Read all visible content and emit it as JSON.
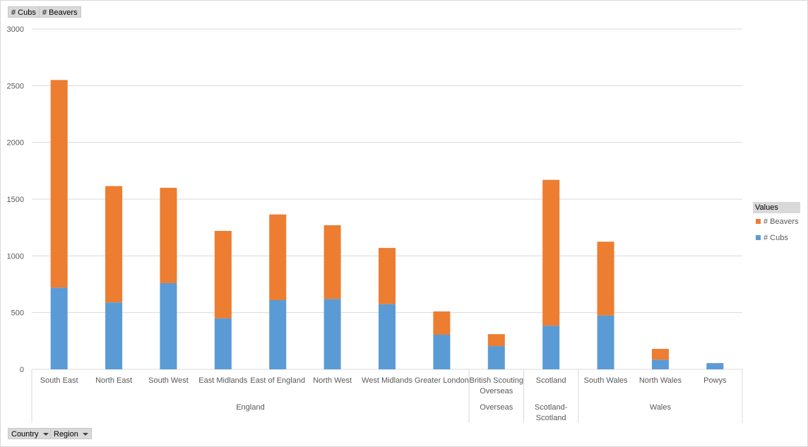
{
  "filters": {
    "value_buttons": [
      "# Cubs",
      "# Beavers"
    ],
    "axis_buttons": [
      "Country",
      "Region"
    ]
  },
  "legend": {
    "title": "Values",
    "items": [
      {
        "label": "# Beavers",
        "color": "#ed7d31"
      },
      {
        "label": "# Cubs",
        "color": "#5b9bd5"
      }
    ]
  },
  "chart_data": {
    "type": "bar",
    "stacked": true,
    "ylim": [
      0,
      3000
    ],
    "yticks": [
      0,
      500,
      1000,
      1500,
      2000,
      2500,
      3000
    ],
    "grid": true,
    "legend_position": "right",
    "categories": [
      "South East",
      "North East",
      "South West",
      "East Midlands",
      "East of England",
      "North West",
      "West Midlands",
      "Greater London",
      "British Scouting Overseas",
      "Scotland",
      "South Wales",
      "North Wales",
      "Powys"
    ],
    "groups": [
      {
        "label": "England",
        "span": 8
      },
      {
        "label": "Overseas",
        "span": 1
      },
      {
        "label": "Scotland-Scotland",
        "span": 1
      },
      {
        "label": "Wales",
        "span": 3
      }
    ],
    "series": [
      {
        "name": "# Cubs",
        "color": "#5b9bd5",
        "values": [
          720,
          590,
          760,
          450,
          610,
          620,
          575,
          305,
          205,
          385,
          475,
          85,
          55
        ]
      },
      {
        "name": "# Beavers",
        "color": "#ed7d31",
        "values": [
          1830,
          1025,
          840,
          770,
          755,
          650,
          495,
          205,
          105,
          1285,
          650,
          95,
          0
        ]
      }
    ]
  }
}
